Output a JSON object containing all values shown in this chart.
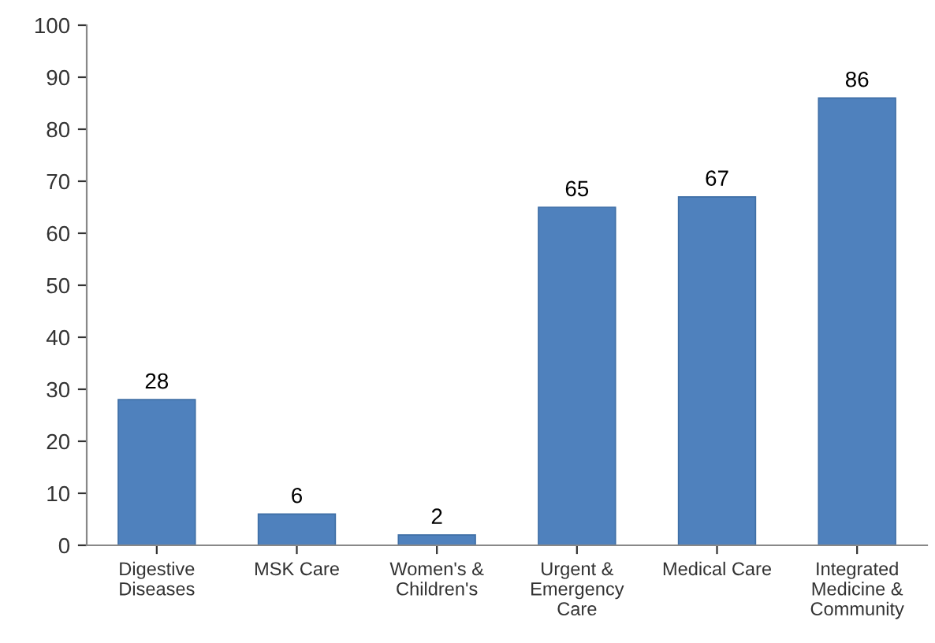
{
  "chart_data": {
    "type": "bar",
    "categories": [
      "Digestive\nDiseases",
      "MSK Care",
      "Women's &\nChildren's",
      "Urgent &\nEmergency\nCare",
      "Medical Care",
      "Integrated\nMedicine &\nCommunity"
    ],
    "values": [
      28,
      6,
      2,
      65,
      67,
      86
    ],
    "color": "#4f81bd",
    "ylim": [
      0,
      100
    ],
    "yticks": [
      0,
      10,
      20,
      30,
      40,
      50,
      60,
      70,
      80,
      90,
      100
    ],
    "data_labels": true,
    "grid": false,
    "legend": false
  }
}
